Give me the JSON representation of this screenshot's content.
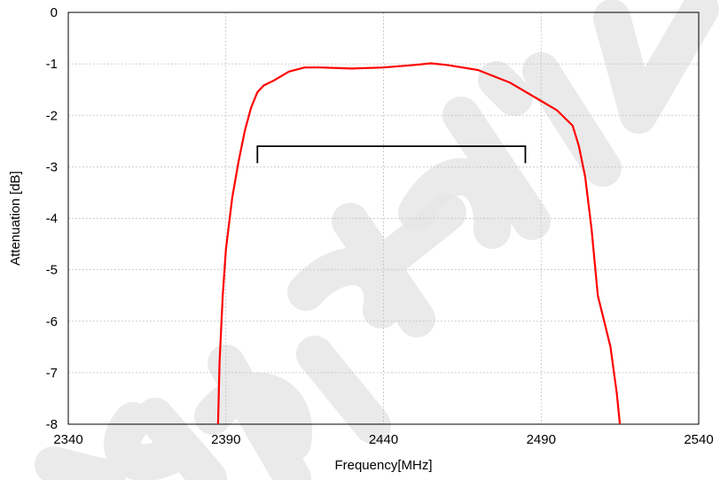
{
  "chart_data": {
    "type": "line",
    "title": "",
    "xlabel": "Frequency[MHz]",
    "ylabel": "Attenuation [dB]",
    "xlim": [
      2340,
      2540
    ],
    "ylim": [
      -8,
      0
    ],
    "xticks": [
      2340,
      2390,
      2440,
      2490,
      2540
    ],
    "yticks": [
      0,
      -1,
      -2,
      -3,
      -4,
      -5,
      -6,
      -7,
      -8
    ],
    "grid": true,
    "legend": "none",
    "series": [
      {
        "color": "#ff0000",
        "x": [
          2387.5,
          2388,
          2389,
          2390,
          2392,
          2394,
          2396,
          2398,
          2400,
          2402,
          2405,
          2410,
          2415,
          2420,
          2430,
          2440,
          2450,
          2455,
          2460,
          2470,
          2480,
          2490,
          2495,
          2500,
          2502,
          2504,
          2506,
          2508,
          2510,
          2512,
          2514,
          2515
        ],
        "y": [
          -8,
          -6.8,
          -5.5,
          -4.6,
          -3.6,
          -2.9,
          -2.3,
          -1.85,
          -1.55,
          -1.42,
          -1.33,
          -1.15,
          -1.07,
          -1.07,
          -1.09,
          -1.07,
          -1.02,
          -0.99,
          -1.02,
          -1.12,
          -1.36,
          -1.72,
          -1.9,
          -2.2,
          -2.6,
          -3.2,
          -4.2,
          -5.5,
          -6.0,
          -6.5,
          -7.4,
          -8
        ]
      }
    ],
    "annotation_bracket": {
      "x_start": 2400,
      "x_end": 2485,
      "y": -2.6,
      "tick_to_y": -2.93,
      "color": "#000000"
    }
  },
  "watermark_text": "Tentative"
}
